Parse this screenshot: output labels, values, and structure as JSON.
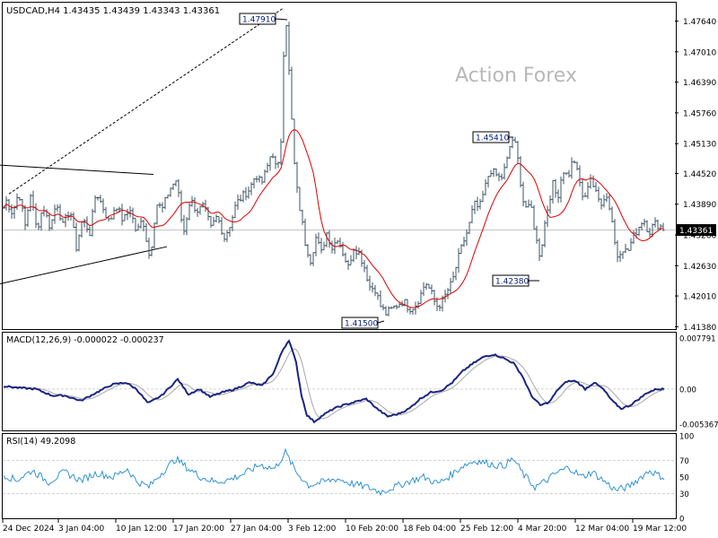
{
  "chart_data": {
    "type": "candlestick",
    "symbol_header": "USDCAD,H4  1.43435 1.43439 1.43343 1.43361",
    "watermark": "Action Forex",
    "current_price": 1.43361,
    "current_price_label": "1.43361",
    "price_axis": {
      "ylim": [
        1.4135,
        1.4798
      ],
      "ticks": [
        1.4764,
        1.4701,
        1.4639,
        1.4576,
        1.4513,
        1.4452,
        1.4389,
        1.4326,
        1.4263,
        1.4201,
        1.4138
      ],
      "tick_labels": [
        "1.47640",
        "1.47010",
        "1.46390",
        "1.45760",
        "1.45130",
        "1.44520",
        "1.43890",
        "1.43260",
        "1.42630",
        "1.42010",
        "1.41380"
      ]
    },
    "x_axis": {
      "labels": [
        "24 Dec 2024",
        "3 Jan 04:00",
        "10 Jan 12:00",
        "17 Jan 20:00",
        "27 Jan 04:00",
        "3 Feb 12:00",
        "10 Feb 20:00",
        "18 Feb 04:00",
        "25 Feb 12:00",
        "4 Mar 20:00",
        "12 Mar 04:00",
        "19 Mar 12:00"
      ]
    },
    "ma_series": {
      "name": "",
      "color": "#dd0000"
    },
    "price_keypoints": [
      [
        0,
        1.4345
      ],
      [
        6,
        1.44
      ],
      [
        14,
        1.437
      ],
      [
        21,
        1.4415
      ],
      [
        28,
        1.4345
      ],
      [
        34,
        1.441
      ],
      [
        41,
        1.4335
      ],
      [
        48,
        1.4385
      ],
      [
        56,
        1.434
      ],
      [
        63,
        1.4395
      ],
      [
        70,
        1.4345
      ],
      [
        78,
        1.438
      ],
      [
        85,
        1.43
      ],
      [
        92,
        1.436
      ],
      [
        100,
        1.433
      ],
      [
        107,
        1.4415
      ],
      [
        114,
        1.4385
      ],
      [
        122,
        1.435
      ],
      [
        129,
        1.439
      ],
      [
        137,
        1.4355
      ],
      [
        145,
        1.438
      ],
      [
        152,
        1.433
      ],
      [
        159,
        1.436
      ],
      [
        167,
        1.4275
      ],
      [
        174,
        1.439
      ],
      [
        181,
        1.438
      ],
      [
        189,
        1.442
      ],
      [
        197,
        1.444
      ],
      [
        204,
        1.4325
      ],
      [
        212,
        1.44
      ],
      [
        219,
        1.4375
      ],
      [
        227,
        1.4385
      ],
      [
        235,
        1.434
      ],
      [
        242,
        1.4365
      ],
      [
        250,
        1.432
      ],
      [
        257,
        1.435
      ],
      [
        263,
        1.439
      ],
      [
        270,
        1.4405
      ],
      [
        278,
        1.442
      ],
      [
        285,
        1.445
      ],
      [
        291,
        1.443
      ],
      [
        297,
        1.446
      ],
      [
        303,
        1.45
      ],
      [
        309,
        1.445
      ],
      [
        313,
        1.452
      ],
      [
        316,
        1.47
      ],
      [
        319,
        1.476
      ],
      [
        322,
        1.466
      ],
      [
        325,
        1.456
      ],
      [
        328,
        1.447
      ],
      [
        332,
        1.44
      ],
      [
        336,
        1.436
      ],
      [
        340,
        1.431
      ],
      [
        346,
        1.4275
      ],
      [
        352,
        1.432
      ],
      [
        358,
        1.429
      ],
      [
        364,
        1.433
      ],
      [
        370,
        1.43
      ],
      [
        376,
        1.432
      ],
      [
        382,
        1.429
      ],
      [
        388,
        1.426
      ],
      [
        394,
        1.43
      ],
      [
        400,
        1.429
      ],
      [
        406,
        1.426
      ],
      [
        412,
        1.422
      ],
      [
        418,
        1.4215
      ],
      [
        424,
        1.418
      ],
      [
        430,
        1.4165
      ],
      [
        437,
        1.4175
      ],
      [
        444,
        1.4185
      ],
      [
        450,
        1.419
      ],
      [
        456,
        1.4175
      ],
      [
        462,
        1.418
      ],
      [
        468,
        1.42
      ],
      [
        474,
        1.423
      ],
      [
        480,
        1.421
      ],
      [
        486,
        1.418
      ],
      [
        492,
        1.4185
      ],
      [
        498,
        1.421
      ],
      [
        504,
        1.423
      ],
      [
        510,
        1.4275
      ],
      [
        516,
        1.431
      ],
      [
        522,
        1.434
      ],
      [
        528,
        1.439
      ],
      [
        534,
        1.438
      ],
      [
        540,
        1.442
      ],
      [
        546,
        1.446
      ],
      [
        552,
        1.445
      ],
      [
        558,
        1.444
      ],
      [
        564,
        1.447
      ],
      [
        570,
        1.4525
      ],
      [
        574,
        1.451
      ],
      [
        578,
        1.447
      ],
      [
        582,
        1.44
      ],
      [
        587,
        1.438
      ],
      [
        592,
        1.438
      ],
      [
        597,
        1.432
      ],
      [
        602,
        1.428
      ],
      [
        606,
        1.434
      ],
      [
        611,
        1.439
      ],
      [
        616,
        1.443
      ],
      [
        621,
        1.44
      ],
      [
        627,
        1.446
      ],
      [
        633,
        1.4445
      ],
      [
        639,
        1.4485
      ],
      [
        645,
        1.444
      ],
      [
        651,
        1.439
      ],
      [
        657,
        1.445
      ],
      [
        663,
        1.4415
      ],
      [
        669,
        1.439
      ],
      [
        675,
        1.441
      ],
      [
        681,
        1.437
      ],
      [
        687,
        1.428
      ],
      [
        693,
        1.43
      ],
      [
        699,
        1.429
      ],
      [
        705,
        1.432
      ],
      [
        711,
        1.434
      ],
      [
        717,
        1.436
      ],
      [
        723,
        1.433
      ],
      [
        729,
        1.435
      ],
      [
        735,
        1.4345
      ],
      [
        741,
        1.4336
      ]
    ],
    "price_callouts": [
      {
        "label": "1.47910",
        "at_x": 320,
        "value": 1.4791,
        "side": "above"
      },
      {
        "label": "1.45410",
        "at_x": 572,
        "value": 1.4541,
        "side": "above"
      },
      {
        "label": "1.42380",
        "at_x": 601,
        "value": 1.4238,
        "side": "below"
      },
      {
        "label": "1.41500",
        "at_x": 428,
        "value": 1.415,
        "side": "below"
      }
    ],
    "macd": {
      "label": "MACD(12,26,9) -0.000022 -0.000237",
      "ylim": [
        -0.0062,
        0.0085
      ],
      "tick_labels": [
        "0.007791",
        "0.00",
        "-0.005367"
      ],
      "tick_values": [
        0.007791,
        0.0,
        -0.005367
      ],
      "keypoints": [
        [
          0,
          0.0005
        ],
        [
          20,
          0.0002
        ],
        [
          40,
          0.0
        ],
        [
          58,
          -0.001
        ],
        [
          72,
          -0.001
        ],
        [
          90,
          -0.0018
        ],
        [
          108,
          -0.0005
        ],
        [
          125,
          0.0007
        ],
        [
          140,
          0.001
        ],
        [
          152,
          0.0
        ],
        [
          165,
          -0.0022
        ],
        [
          180,
          -0.001
        ],
        [
          198,
          0.0015
        ],
        [
          210,
          -0.0008
        ],
        [
          222,
          0.0
        ],
        [
          234,
          -0.0012
        ],
        [
          248,
          -0.0005
        ],
        [
          262,
          0.0
        ],
        [
          278,
          0.001
        ],
        [
          292,
          0.0005
        ],
        [
          305,
          0.0025
        ],
        [
          315,
          0.006
        ],
        [
          322,
          0.0075
        ],
        [
          330,
          0.004
        ],
        [
          336,
          -0.001
        ],
        [
          342,
          -0.004
        ],
        [
          350,
          -0.005
        ],
        [
          360,
          -0.004
        ],
        [
          372,
          -0.003
        ],
        [
          382,
          -0.0025
        ],
        [
          395,
          -0.002
        ],
        [
          408,
          -0.0015
        ],
        [
          420,
          -0.003
        ],
        [
          432,
          -0.0042
        ],
        [
          444,
          -0.0038
        ],
        [
          456,
          -0.003
        ],
        [
          468,
          -0.0015
        ],
        [
          480,
          -0.0005
        ],
        [
          492,
          -0.0002
        ],
        [
          504,
          0.001
        ],
        [
          516,
          0.0028
        ],
        [
          528,
          0.004
        ],
        [
          540,
          0.005
        ],
        [
          550,
          0.0053
        ],
        [
          560,
          0.0048
        ],
        [
          572,
          0.004
        ],
        [
          582,
          0.002
        ],
        [
          592,
          -0.001
        ],
        [
          602,
          -0.0025
        ],
        [
          612,
          -0.002
        ],
        [
          622,
          0.0
        ],
        [
          632,
          0.0012
        ],
        [
          642,
          0.0012
        ],
        [
          652,
          0.0
        ],
        [
          662,
          0.001
        ],
        [
          672,
          0.0
        ],
        [
          682,
          -0.0018
        ],
        [
          692,
          -0.003
        ],
        [
          702,
          -0.0025
        ],
        [
          712,
          -0.0015
        ],
        [
          722,
          -0.0005
        ],
        [
          732,
          0.0
        ],
        [
          741,
          -2e-05
        ]
      ]
    },
    "rsi": {
      "label": "RSI(14) 49.2098",
      "ylim": [
        0,
        100
      ],
      "levels": [
        70,
        30
      ],
      "tick_labels": [
        "100",
        "70",
        "50",
        "30",
        "0"
      ],
      "tick_values": [
        100,
        70,
        50,
        30,
        0
      ],
      "keypoints": [
        [
          0,
          55
        ],
        [
          18,
          46
        ],
        [
          36,
          58
        ],
        [
          54,
          44
        ],
        [
          72,
          56
        ],
        [
          90,
          46
        ],
        [
          108,
          55
        ],
        [
          126,
          50
        ],
        [
          142,
          60
        ],
        [
          152,
          45
        ],
        [
          166,
          38
        ],
        [
          180,
          55
        ],
        [
          196,
          72
        ],
        [
          210,
          60
        ],
        [
          224,
          50
        ],
        [
          240,
          44
        ],
        [
          256,
          47
        ],
        [
          272,
          54
        ],
        [
          290,
          65
        ],
        [
          306,
          60
        ],
        [
          318,
          80
        ],
        [
          330,
          56
        ],
        [
          344,
          40
        ],
        [
          360,
          44
        ],
        [
          376,
          48
        ],
        [
          392,
          42
        ],
        [
          408,
          38
        ],
        [
          424,
          32
        ],
        [
          440,
          38
        ],
        [
          456,
          45
        ],
        [
          472,
          50
        ],
        [
          488,
          42
        ],
        [
          502,
          52
        ],
        [
          516,
          64
        ],
        [
          530,
          70
        ],
        [
          546,
          66
        ],
        [
          560,
          63
        ],
        [
          572,
          72
        ],
        [
          584,
          52
        ],
        [
          596,
          38
        ],
        [
          608,
          45
        ],
        [
          620,
          55
        ],
        [
          634,
          62
        ],
        [
          648,
          50
        ],
        [
          660,
          56
        ],
        [
          672,
          46
        ],
        [
          686,
          34
        ],
        [
          700,
          38
        ],
        [
          714,
          50
        ],
        [
          724,
          58
        ],
        [
          734,
          52
        ],
        [
          741,
          49
        ]
      ]
    },
    "annotations": [
      {
        "kind": "dashed_trend",
        "from": [
          10,
          1.441
        ],
        "to": [
          316,
          1.4791
        ]
      },
      {
        "kind": "channel_line",
        "from": [
          0,
          1.4469
        ],
        "to": [
          171,
          1.445
        ]
      },
      {
        "kind": "channel_line",
        "from": [
          0,
          1.4226
        ],
        "to": [
          186,
          1.4302
        ]
      }
    ]
  }
}
